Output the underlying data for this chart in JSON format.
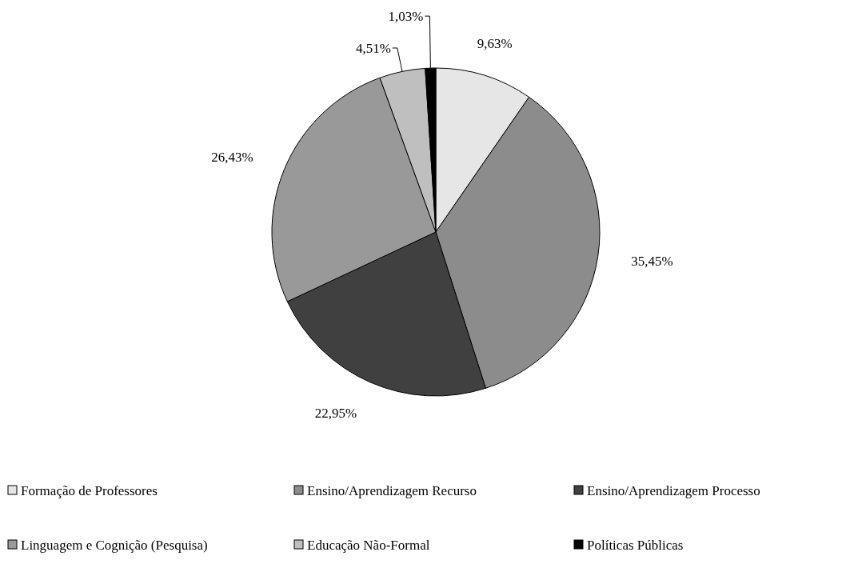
{
  "chart_data": {
    "type": "pie",
    "categories": [
      "Formação de Professores",
      "Ensino/Aprendizagem Recurso",
      "Ensino/Aprendizagem Processo",
      "Linguagem e Cognição (Pesquisa)",
      "Educação Não-Formal",
      "Políticas Públicas"
    ],
    "values": [
      9.63,
      35.45,
      22.95,
      26.43,
      4.51,
      1.03
    ],
    "value_labels": [
      "9,63%",
      "35,45%",
      "22,95%",
      "26,43%",
      "4,51%",
      "1,03%"
    ],
    "colors": [
      "#e6e6e6",
      "#8c8c8c",
      "#404040",
      "#999999",
      "#bfbfbf",
      "#000000"
    ],
    "legend": "bottom"
  }
}
